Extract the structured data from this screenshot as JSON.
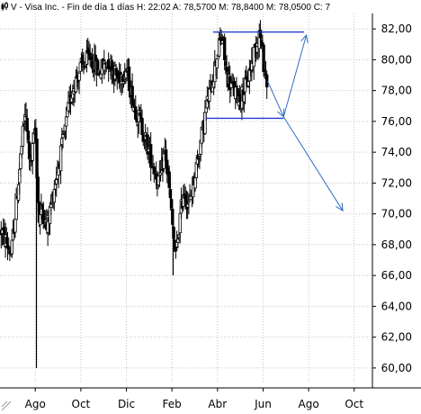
{
  "header": {
    "label": "V - Visa Inc. - Fin de día 1 días  H: 22:02  A: 78,5700  M: 78,8400  M: 78,0500  C: 7",
    "icon": "candlestick-icon"
  },
  "colors": {
    "candle": "#000000",
    "grid": "#c4c4c4",
    "annotation": "#1f3ccf",
    "projection": "#2f6fbf",
    "background": "#ffffff"
  },
  "chart_data": {
    "type": "candlestick",
    "title": "",
    "xlabel": "",
    "ylabel": "",
    "ylim": [
      59,
      83
    ],
    "grid": true,
    "y_ticks": [
      "60,00",
      "62,00",
      "64,00",
      "66,00",
      "68,00",
      "70,00",
      "72,00",
      "74,00",
      "76,00",
      "78,00",
      "80,00",
      "82,00"
    ],
    "y_tick_values": [
      60,
      62,
      64,
      66,
      68,
      70,
      72,
      74,
      76,
      78,
      80,
      82
    ],
    "x_ticks": [
      "Ago",
      "Oct",
      "Dic",
      "Feb",
      "Abr",
      "Jun",
      "Ago",
      "Oct"
    ],
    "x_tick_months": [
      1,
      3,
      5,
      7,
      9,
      11,
      13,
      15
    ],
    "series_anchors": [
      {
        "m": -0.5,
        "p": 68.9
      },
      {
        "m": -0.05,
        "p": 67.4
      },
      {
        "m": 0.25,
        "p": 72.0
      },
      {
        "m": 0.55,
        "p": 76.6
      },
      {
        "m": 0.8,
        "p": 73.0
      },
      {
        "m": 1.0,
        "p": 75.8
      },
      {
        "m": 1.15,
        "p": 69.5
      },
      {
        "m": 1.3,
        "p": 70.4
      },
      {
        "m": 1.5,
        "p": 69.0
      },
      {
        "m": 1.8,
        "p": 71.5
      },
      {
        "m": 2.2,
        "p": 74.5
      },
      {
        "m": 2.6,
        "p": 78.0
      },
      {
        "m": 3.0,
        "p": 79.5
      },
      {
        "m": 3.4,
        "p": 80.2
      },
      {
        "m": 3.8,
        "p": 79.2
      },
      {
        "m": 4.2,
        "p": 80.0
      },
      {
        "m": 4.6,
        "p": 78.8
      },
      {
        "m": 5.0,
        "p": 79.4
      },
      {
        "m": 5.3,
        "p": 77.2
      },
      {
        "m": 5.6,
        "p": 76.0
      },
      {
        "m": 5.9,
        "p": 74.5
      },
      {
        "m": 6.2,
        "p": 73.0
      },
      {
        "m": 6.45,
        "p": 72.0
      },
      {
        "m": 6.7,
        "p": 74.2
      },
      {
        "m": 6.95,
        "p": 70.5
      },
      {
        "m": 7.15,
        "p": 67.0
      },
      {
        "m": 7.3,
        "p": 69.0
      },
      {
        "m": 7.5,
        "p": 71.5
      },
      {
        "m": 7.75,
        "p": 70.5
      },
      {
        "m": 8.0,
        "p": 72.5
      },
      {
        "m": 8.3,
        "p": 75.0
      },
      {
        "m": 8.55,
        "p": 77.2
      },
      {
        "m": 8.75,
        "p": 78.5
      },
      {
        "m": 9.0,
        "p": 80.5
      },
      {
        "m": 9.2,
        "p": 81.5
      },
      {
        "m": 9.4,
        "p": 79.0
      },
      {
        "m": 9.7,
        "p": 78.0
      },
      {
        "m": 10.0,
        "p": 77.5
      },
      {
        "m": 10.3,
        "p": 78.5
      },
      {
        "m": 10.6,
        "p": 80.5
      },
      {
        "m": 10.85,
        "p": 81.8
      },
      {
        "m": 11.05,
        "p": 79.5
      },
      {
        "m": 11.2,
        "p": 78.3
      }
    ],
    "spikes": [
      {
        "m": 1.05,
        "high": 75.5,
        "low": 60.0
      },
      {
        "m": 7.05,
        "high": 69.0,
        "low": 66.0
      }
    ],
    "resistance": {
      "price": 81.8,
      "from_month": 8.8,
      "to_month": 12.8
    },
    "support": {
      "price": 76.2,
      "from_month": 8.5,
      "to_month": 11.9
    },
    "projection_path": [
      {
        "m": 11.2,
        "p": 78.6
      },
      {
        "m": 11.9,
        "p": 76.3
      },
      {
        "m": 12.9,
        "p": 81.6
      }
    ],
    "target_arrow": [
      {
        "m": 11.9,
        "p": 76.3
      },
      {
        "m": 14.5,
        "p": 70.2
      }
    ]
  }
}
